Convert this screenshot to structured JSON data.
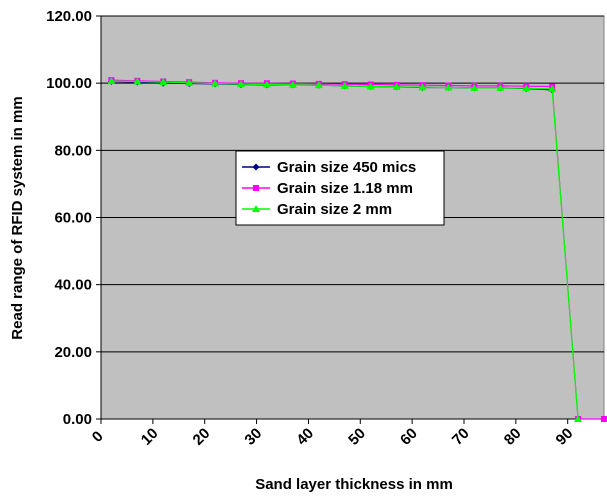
{
  "chart_data": {
    "type": "line",
    "title": "",
    "xlabel": "Sand layer thickness in mm",
    "ylabel": "Read range of RFID system in mm",
    "ylim": [
      0,
      120
    ],
    "xlim": [
      0,
      97
    ],
    "y_ticks": [
      "0.00",
      "20.00",
      "40.00",
      "60.00",
      "80.00",
      "100.00",
      "120.00"
    ],
    "x_ticks": [
      "0",
      "10",
      "20",
      "30",
      "40",
      "50",
      "60",
      "70",
      "80",
      "90"
    ],
    "x_tick_values": [
      0,
      10,
      20,
      30,
      40,
      50,
      60,
      70,
      80,
      90
    ],
    "grid": "horizontal",
    "legend_position": "center",
    "plot_background": "#c0c0c0",
    "series": [
      {
        "name": "Grain size 450 mics",
        "color": "#000080",
        "marker": "diamond",
        "x": [
          2,
          7,
          12,
          17,
          22,
          27,
          32,
          37,
          42,
          47,
          52,
          57,
          62,
          67,
          72,
          77,
          82,
          87
        ],
        "y": [
          100.5,
          100.3,
          100.0,
          99.9,
          99.8,
          99.6,
          99.5,
          99.5,
          99.4,
          99.2,
          99.0,
          98.9,
          98.7,
          98.7,
          98.6,
          98.6,
          98.4,
          98.0
        ]
      },
      {
        "name": "Grain size 1.18 mm",
        "color": "#ff00ff",
        "marker": "square",
        "x": [
          2,
          7,
          12,
          17,
          22,
          27,
          32,
          37,
          42,
          47,
          52,
          57,
          62,
          67,
          72,
          77,
          82,
          87,
          92,
          97
        ],
        "y": [
          100.9,
          100.7,
          100.5,
          100.3,
          100.1,
          100.0,
          100.0,
          99.9,
          99.8,
          99.7,
          99.6,
          99.5,
          99.4,
          99.3,
          99.2,
          99.2,
          99.1,
          99.0,
          0.0,
          0.0
        ]
      },
      {
        "name": "Grain size 2 mm",
        "color": "#00ff00",
        "marker": "triangle",
        "x": [
          2,
          7,
          12,
          17,
          22,
          27,
          32,
          37,
          42,
          47,
          52,
          57,
          62,
          67,
          72,
          77,
          82,
          87,
          92
        ],
        "y": [
          100.6,
          100.5,
          100.3,
          100.1,
          99.9,
          99.7,
          99.6,
          99.5,
          99.4,
          99.2,
          99.0,
          98.9,
          98.8,
          98.7,
          98.6,
          98.6,
          98.5,
          98.3,
          0.0
        ]
      }
    ]
  }
}
